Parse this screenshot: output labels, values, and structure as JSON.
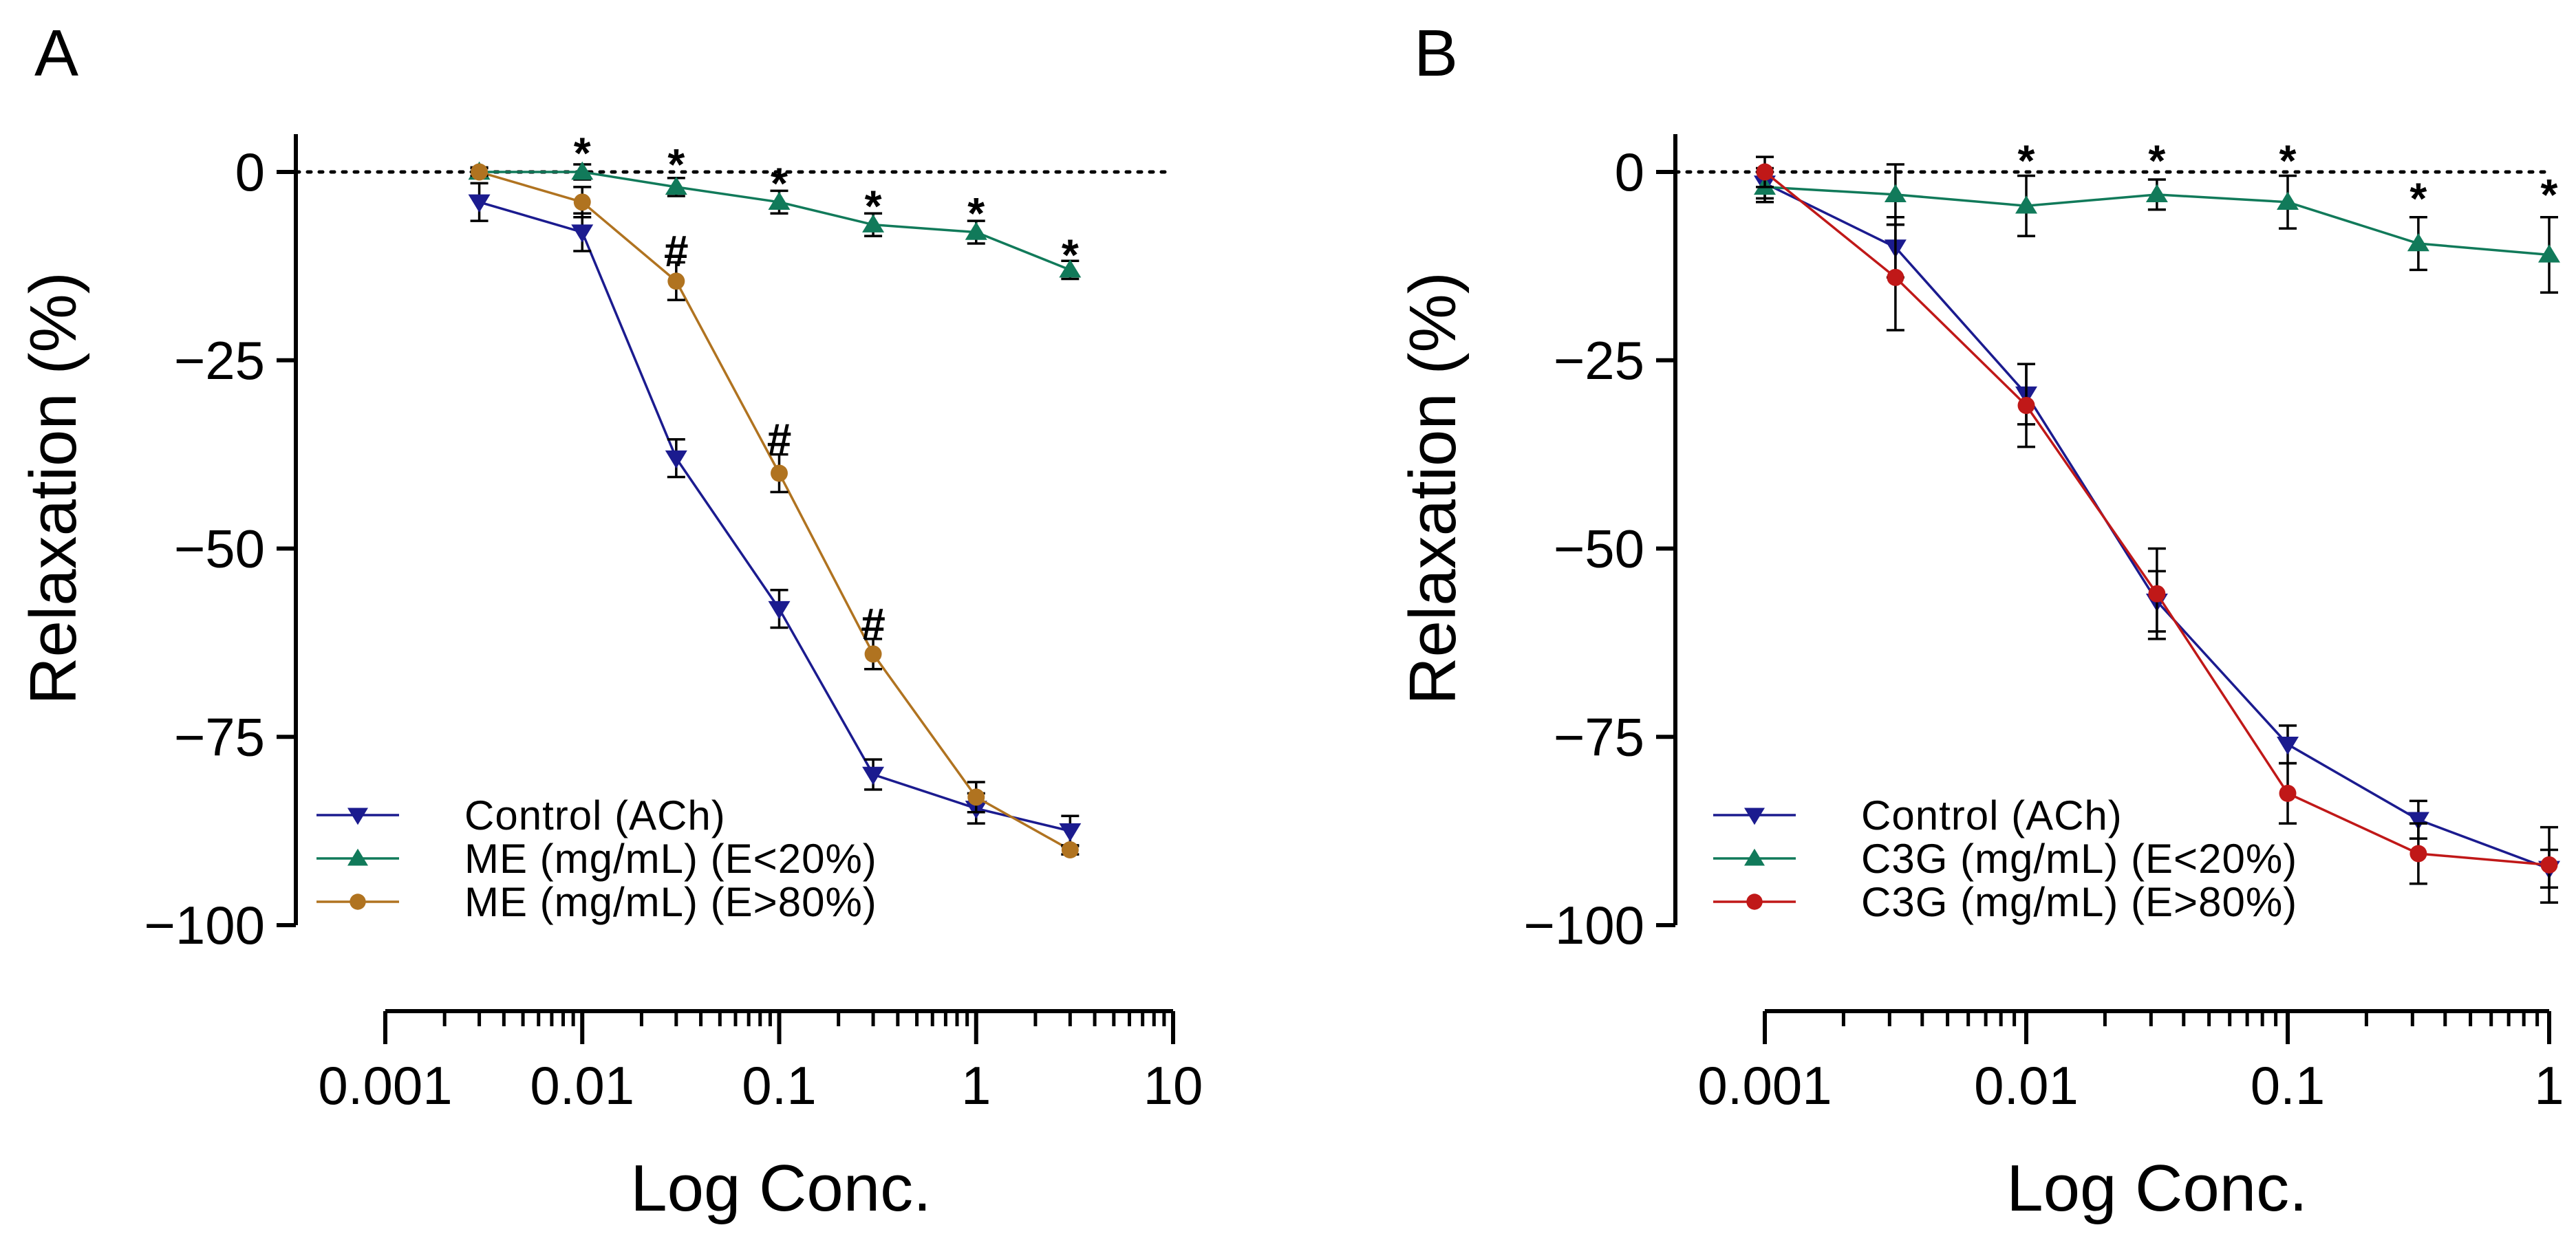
{
  "figure": {
    "panels": [
      "A",
      "B"
    ]
  },
  "chart_data": [
    {
      "panel": "A",
      "type": "line",
      "xscale": "log",
      "xlabel": "Log Conc.",
      "ylabel": "Relaxation (%)",
      "xlim": [
        0.001,
        10
      ],
      "ylim": [
        -100,
        5
      ],
      "x_ticks": [
        0.001,
        0.01,
        0.1,
        1,
        10
      ],
      "x_tick_labels": [
        "0.001",
        "0.01",
        "0.1",
        "1",
        "10"
      ],
      "y_ticks": [
        0,
        -25,
        -50,
        -75,
        -100
      ],
      "y_tick_labels": [
        "0",
        "−25",
        "−50",
        "−75",
        "−100"
      ],
      "reference_line": 0,
      "legend_position": "bottom-left",
      "series": [
        {
          "name": "Control (ACh)",
          "color": "#1b1b8f",
          "marker": "triangle-down",
          "x": [
            0.003,
            0.01,
            0.03,
            0.1,
            0.3,
            1,
            3
          ],
          "values": [
            -4,
            -8,
            -38,
            -58,
            -80,
            -84.5,
            -87.5
          ],
          "errors": [
            2.5,
            2.5,
            2.5,
            2.5,
            2,
            2,
            2
          ]
        },
        {
          "name": "ME (mg/mL) (E<20%)",
          "color": "#117a5a",
          "marker": "triangle-up",
          "x": [
            0.003,
            0.01,
            0.03,
            0.1,
            0.3,
            1,
            3
          ],
          "values": [
            0,
            0,
            -2,
            -4,
            -7,
            -8,
            -13
          ],
          "errors": [
            0.6,
            1,
            1.2,
            1.5,
            1.5,
            1.5,
            1.2
          ]
        },
        {
          "name": "ME (mg/mL) (E>80%)",
          "color": "#b07320",
          "marker": "circle",
          "x": [
            0.003,
            0.01,
            0.03,
            0.1,
            0.3,
            1,
            3
          ],
          "values": [
            0,
            -4,
            -14.5,
            -40,
            -64,
            -83,
            -90
          ],
          "errors": [
            0.5,
            2,
            2.5,
            2.5,
            2,
            2,
            0.6
          ]
        }
      ],
      "annotations": [
        {
          "text": "*",
          "x": 0.01,
          "y": 2.5
        },
        {
          "text": "*",
          "x": 0.03,
          "y": 1
        },
        {
          "text": "*",
          "x": 0.1,
          "y": -1.5
        },
        {
          "text": "*",
          "x": 0.3,
          "y": -4.5
        },
        {
          "text": "*",
          "x": 1,
          "y": -5.5
        },
        {
          "text": "*",
          "x": 3,
          "y": -11
        },
        {
          "text": "#",
          "x": 0.03,
          "y": -10.5
        },
        {
          "text": "#",
          "x": 0.1,
          "y": -35.5
        },
        {
          "text": "#",
          "x": 0.3,
          "y": -60
        }
      ]
    },
    {
      "panel": "B",
      "type": "line",
      "xscale": "log",
      "xlabel": "Log Conc.",
      "ylabel": "Relaxation (%)",
      "xlim": [
        0.001,
        1
      ],
      "ylim": [
        -100,
        5
      ],
      "x_ticks": [
        0.001,
        0.01,
        0.1,
        1
      ],
      "x_tick_labels": [
        "0.001",
        "0.01",
        "0.1",
        "1"
      ],
      "y_ticks": [
        0,
        -25,
        -50,
        -75,
        -100
      ],
      "y_tick_labels": [
        "0",
        "−25",
        "−50",
        "−75",
        "−100"
      ],
      "reference_line": 0,
      "legend_position": "bottom-left",
      "series": [
        {
          "name": "Control (ACh)",
          "color": "#1b1b8f",
          "marker": "triangle-down",
          "x": [
            0.001,
            0.00316,
            0.01,
            0.0316,
            0.1,
            0.316,
            1
          ],
          "values": [
            -1.5,
            -10,
            -29.5,
            -57,
            -76,
            -86,
            -92.5
          ],
          "errors": [
            2,
            4,
            4,
            4,
            2.5,
            2.5,
            2.5
          ]
        },
        {
          "name": "C3G (mg/mL) (E<20%)",
          "color": "#117a5a",
          "marker": "triangle-up",
          "x": [
            0.001,
            0.00316,
            0.01,
            0.0316,
            0.1,
            0.316,
            1
          ],
          "values": [
            -2,
            -3,
            -4.5,
            -3,
            -4,
            -9.5,
            -11
          ],
          "errors": [
            2,
            4,
            4,
            2,
            3.5,
            3.5,
            5
          ]
        },
        {
          "name": "C3G (mg/mL) (E>80%)",
          "color": "#c01818",
          "marker": "circle",
          "x": [
            0.001,
            0.00316,
            0.01,
            0.0316,
            0.1,
            0.316,
            1
          ],
          "values": [
            0,
            -14,
            -31,
            -56,
            -82.5,
            -90.5,
            -92
          ],
          "errors": [
            2,
            7,
            5.5,
            6,
            4,
            4,
            5
          ]
        }
      ],
      "annotations": [
        {
          "text": "*",
          "x": 0.01,
          "y": 1.5
        },
        {
          "text": "*",
          "x": 0.0316,
          "y": 1.5
        },
        {
          "text": "*",
          "x": 0.1,
          "y": 1.5
        },
        {
          "text": "*",
          "x": 0.316,
          "y": -3.5
        },
        {
          "text": "*",
          "x": 1,
          "y": -3
        }
      ]
    }
  ]
}
